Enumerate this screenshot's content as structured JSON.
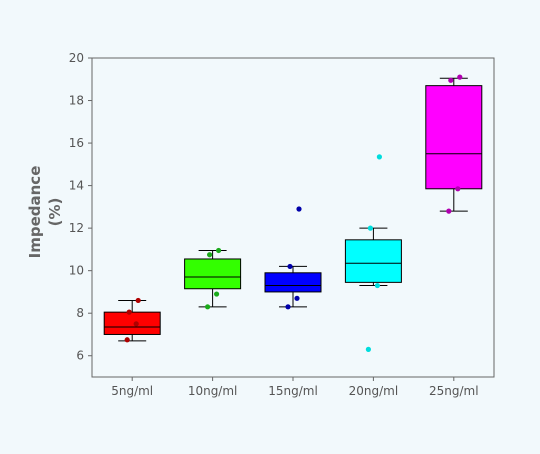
{
  "chart_data": {
    "type": "box",
    "title": "",
    "xlabel": "",
    "ylabel": [
      "Impedance",
      "(%)"
    ],
    "ylim": [
      5,
      20
    ],
    "yticks": [
      6,
      8,
      10,
      12,
      14,
      16,
      18,
      20
    ],
    "grid": false,
    "legend": "none",
    "categories": [
      "5ng/ml",
      "10ng/ml",
      "15ng/ml",
      "20ng/ml",
      "25ng/ml"
    ],
    "boxes": [
      {
        "category": "5ng/ml",
        "color": "#ff0000",
        "point_color": "#b00000",
        "whisker_low": 6.7,
        "q1": 7.0,
        "median": 7.35,
        "q3": 8.05,
        "whisker_high": 8.6,
        "points": [
          6.75,
          7.5,
          8.05,
          8.6
        ]
      },
      {
        "category": "10ng/ml",
        "color": "#33ff00",
        "point_color": "#1aaa1a",
        "whisker_low": 8.3,
        "q1": 9.15,
        "median": 9.7,
        "q3": 10.55,
        "whisker_high": 10.95,
        "points": [
          8.3,
          8.9,
          10.75,
          10.95
        ]
      },
      {
        "category": "15ng/ml",
        "color": "#0000ff",
        "point_color": "#0000aa",
        "whisker_low": 8.3,
        "q1": 9.0,
        "median": 9.3,
        "q3": 9.9,
        "whisker_high": 10.2,
        "points": [
          8.3,
          8.7,
          10.2,
          12.9
        ]
      },
      {
        "category": "20ng/ml",
        "color": "#00ffff",
        "point_color": "#00dddd",
        "whisker_low": 9.3,
        "q1": 9.45,
        "median": 10.35,
        "q3": 11.45,
        "whisker_high": 12.0,
        "points": [
          6.3,
          9.3,
          12.0,
          15.35
        ]
      },
      {
        "category": "25ng/ml",
        "color": "#ff00ff",
        "point_color": "#b000b0",
        "whisker_low": 12.8,
        "q1": 13.85,
        "median": 15.5,
        "q3": 18.7,
        "whisker_high": 19.05,
        "points": [
          12.8,
          13.85,
          18.95,
          19.1
        ]
      }
    ]
  }
}
